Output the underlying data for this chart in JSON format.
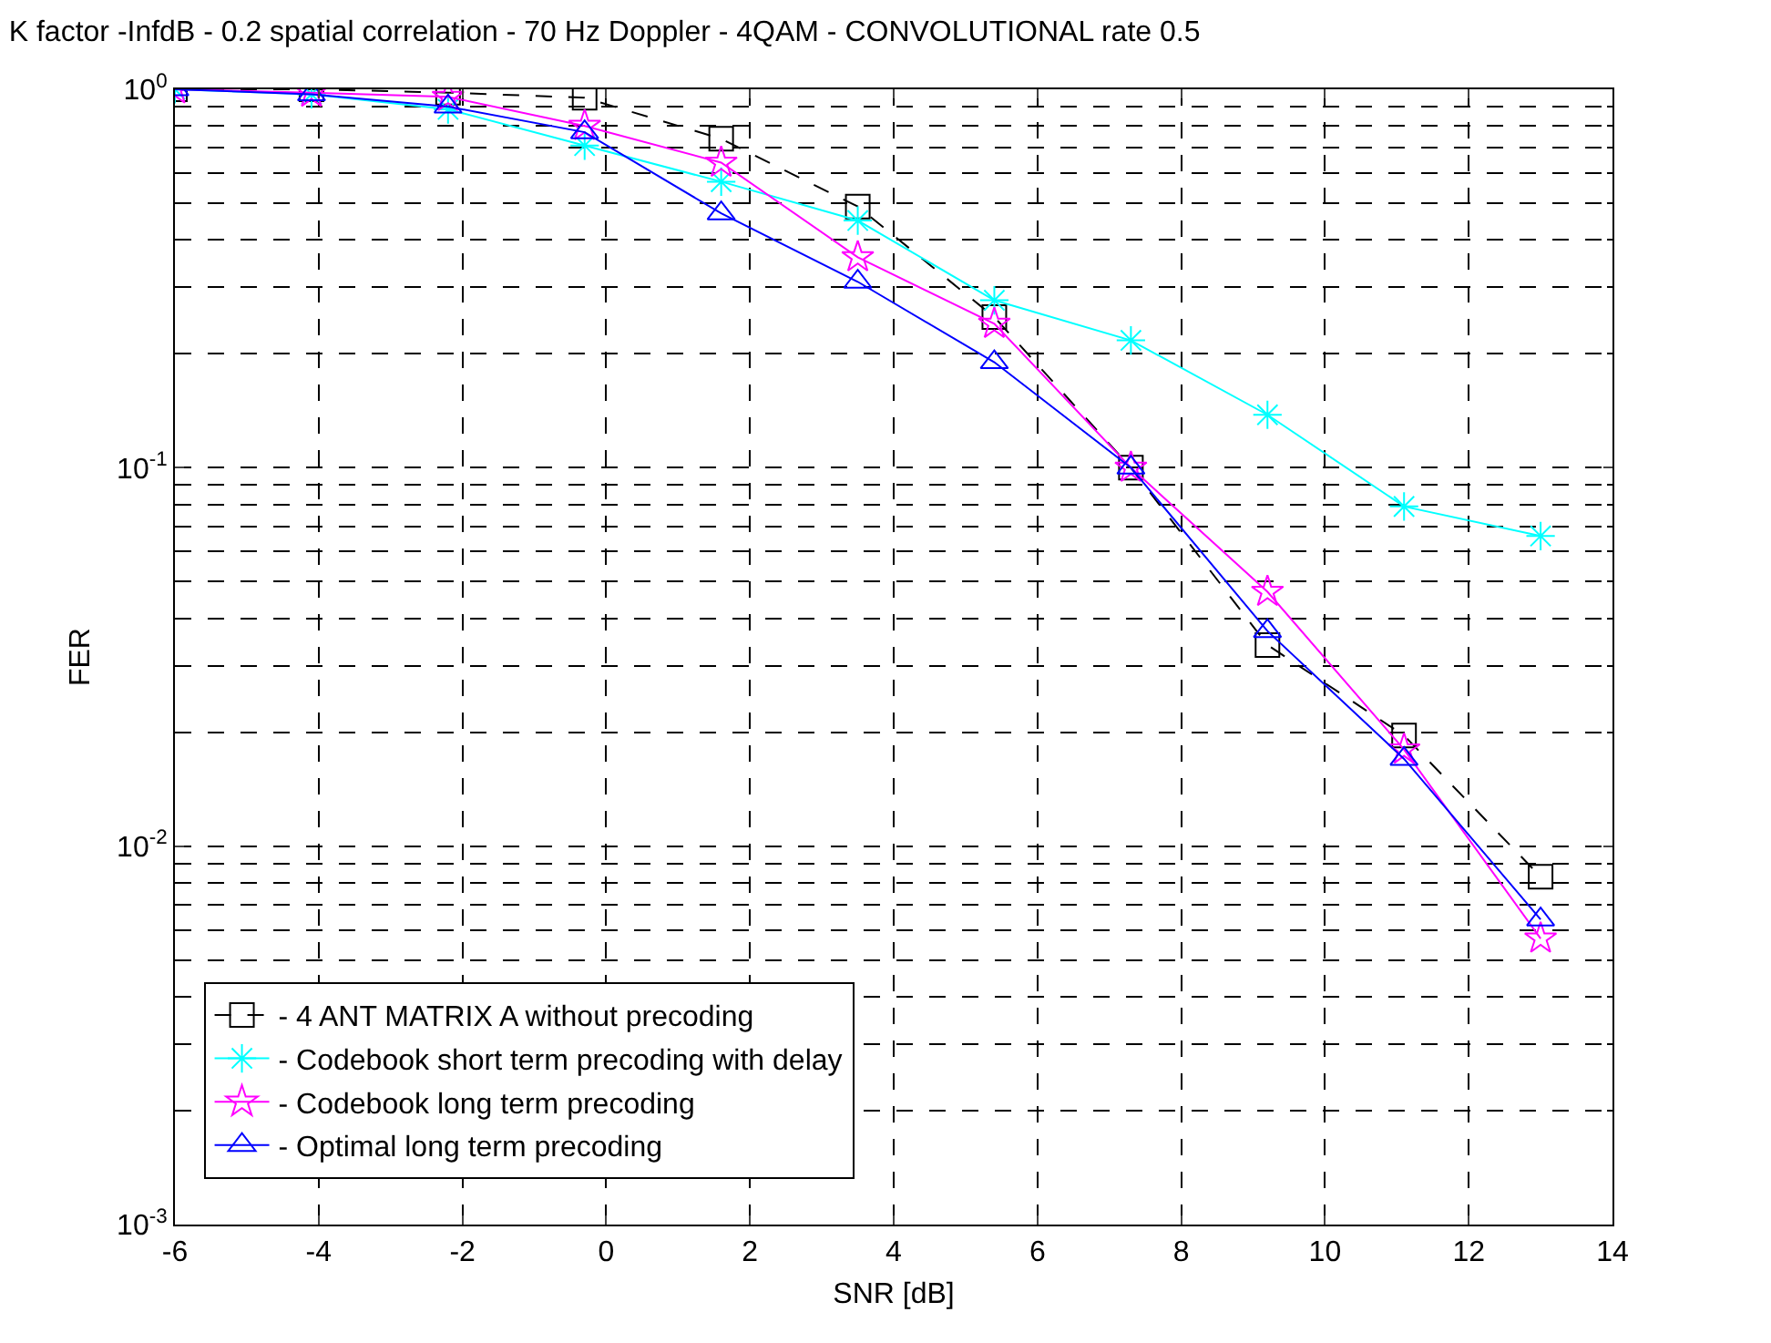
{
  "chart_data": {
    "type": "line",
    "title": "K factor -InfdB - 0.2 spatial correlation - 70 Hz Doppler - 4QAM - CONVOLUTIONAL rate 0.5",
    "xlabel": "SNR [dB]",
    "ylabel": "FER",
    "x": [
      -6,
      -4.1,
      -2.2,
      -0.3,
      1.6,
      3.5,
      5.4,
      7.3,
      9.2,
      11.1,
      13
    ],
    "series": [
      {
        "name": "- 4 ANT MATRIX A without precoding",
        "color": "#000000",
        "marker": "square",
        "line_style": "dashed",
        "values": [
          1,
          1,
          0.98,
          0.95,
          0.74,
          0.49,
          0.25,
          0.1,
          0.034,
          0.0196,
          0.0083
        ]
      },
      {
        "name": "- Codebook short term precoding with delay",
        "color": "#00ffff",
        "marker": "cross",
        "line_style": "solid",
        "values": [
          1,
          0.97,
          0.885,
          0.71,
          0.57,
          0.45,
          0.277,
          0.217,
          0.138,
          0.079,
          0.066
        ]
      },
      {
        "name": "- Codebook long term precoding",
        "color": "#ff00ff",
        "marker": "star",
        "line_style": "solid",
        "values": [
          1,
          0.98,
          0.955,
          0.8,
          0.64,
          0.36,
          0.24,
          0.1,
          0.047,
          0.018,
          0.0057
        ]
      },
      {
        "name": "- Optimal long term precoding",
        "color": "#0000ff",
        "marker": "triangle",
        "line_style": "solid",
        "values": [
          1,
          0.97,
          0.9,
          0.77,
          0.47,
          0.31,
          0.19,
          0.1,
          0.037,
          0.017,
          0.0064
        ]
      }
    ],
    "log": "y",
    "xlim": [
      -6,
      14
    ],
    "xticks": [
      -6,
      -4,
      -2,
      0,
      2,
      4,
      6,
      8,
      10,
      12,
      14
    ],
    "ylim": [
      0.001,
      1
    ],
    "yticks": [
      {
        "value": 0.001,
        "label": "10$^{-3}$"
      },
      {
        "value": 0.01,
        "label": "10$^{-2}$"
      },
      {
        "value": 0.1,
        "label": "10$^{-1}$"
      },
      {
        "value": 1,
        "label": "10$^{0}$"
      }
    ],
    "grid": true,
    "legend": "bottom left"
  }
}
